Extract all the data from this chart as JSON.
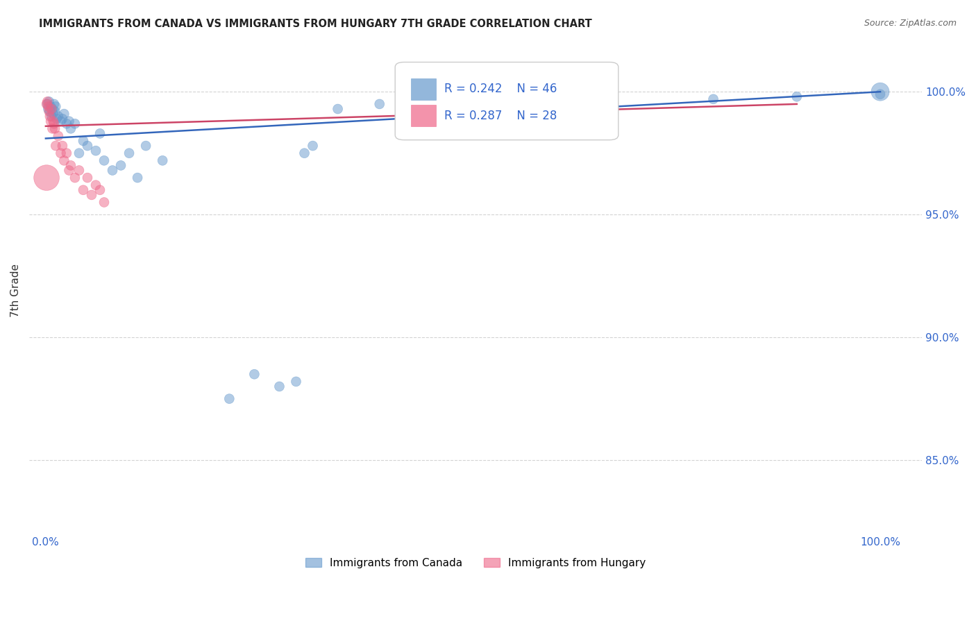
{
  "title": "IMMIGRANTS FROM CANADA VS IMMIGRANTS FROM HUNGARY 7TH GRADE CORRELATION CHART",
  "source": "Source: ZipAtlas.com",
  "ylabel": "7th Grade",
  "legend_canada": "Immigrants from Canada",
  "legend_hungary": "Immigrants from Hungary",
  "R_canada": 0.242,
  "N_canada": 46,
  "R_hungary": 0.287,
  "N_hungary": 28,
  "color_canada": "#6699cc",
  "color_hungary": "#ee6688",
  "line_color_canada": "#3366bb",
  "line_color_hungary": "#cc4466",
  "canada_x": [
    0.002,
    0.003,
    0.004,
    0.005,
    0.006,
    0.007,
    0.008,
    0.009,
    0.01,
    0.011,
    0.012,
    0.013,
    0.015,
    0.018,
    0.02,
    0.022,
    0.025,
    0.028,
    0.03,
    0.035,
    0.04,
    0.045,
    0.05,
    0.06,
    0.065,
    0.07,
    0.08,
    0.09,
    0.1,
    0.11,
    0.12,
    0.14,
    0.22,
    0.25,
    0.28,
    0.3,
    0.31,
    0.32,
    0.35,
    0.4,
    0.5,
    0.6,
    0.8,
    0.9,
    1.0,
    1.0
  ],
  "canada_y": [
    99.5,
    99.3,
    99.6,
    99.2,
    99.4,
    99.0,
    99.3,
    99.1,
    99.5,
    99.2,
    99.4,
    98.9,
    99.0,
    98.8,
    98.9,
    99.1,
    98.7,
    98.8,
    98.5,
    98.7,
    97.5,
    98.0,
    97.8,
    97.6,
    98.3,
    97.2,
    96.8,
    97.0,
    97.5,
    96.5,
    97.8,
    97.2,
    87.5,
    88.5,
    88.0,
    88.2,
    97.5,
    97.8,
    99.3,
    99.5,
    99.5,
    99.6,
    99.7,
    99.8,
    99.9,
    100.0
  ],
  "canada_sizes": [
    100,
    100,
    100,
    100,
    100,
    100,
    100,
    100,
    100,
    100,
    100,
    100,
    100,
    100,
    100,
    100,
    100,
    100,
    100,
    100,
    100,
    100,
    100,
    100,
    100,
    100,
    100,
    100,
    100,
    100,
    100,
    100,
    100,
    100,
    100,
    100,
    100,
    100,
    100,
    100,
    100,
    100,
    100,
    100,
    100,
    350
  ],
  "hungary_x": [
    0.001,
    0.002,
    0.003,
    0.004,
    0.005,
    0.006,
    0.007,
    0.008,
    0.009,
    0.01,
    0.011,
    0.012,
    0.015,
    0.018,
    0.02,
    0.022,
    0.025,
    0.028,
    0.03,
    0.035,
    0.04,
    0.045,
    0.05,
    0.055,
    0.06,
    0.065,
    0.07,
    0.001
  ],
  "hungary_y": [
    99.5,
    99.6,
    99.4,
    99.2,
    99.0,
    98.8,
    99.3,
    98.5,
    98.8,
    98.7,
    98.5,
    97.8,
    98.2,
    97.5,
    97.8,
    97.2,
    97.5,
    96.8,
    97.0,
    96.5,
    96.8,
    96.0,
    96.5,
    95.8,
    96.2,
    96.0,
    95.5,
    96.5
  ],
  "hungary_sizes": [
    100,
    100,
    100,
    100,
    100,
    100,
    100,
    100,
    100,
    100,
    100,
    100,
    100,
    100,
    100,
    100,
    100,
    100,
    100,
    100,
    100,
    100,
    100,
    100,
    100,
    100,
    100,
    700
  ],
  "xlim": [
    -0.02,
    1.05
  ],
  "ylim": [
    82.0,
    101.8
  ],
  "yticks": [
    85.0,
    90.0,
    95.0,
    100.0
  ],
  "ytick_labels": [
    "85.0%",
    "90.0%",
    "95.0%",
    "100.0%"
  ],
  "canada_line_x": [
    0.0,
    1.0
  ],
  "canada_line_y": [
    98.1,
    100.0
  ],
  "hungary_line_x": [
    0.0,
    0.9
  ],
  "hungary_line_y": [
    98.6,
    99.5
  ]
}
